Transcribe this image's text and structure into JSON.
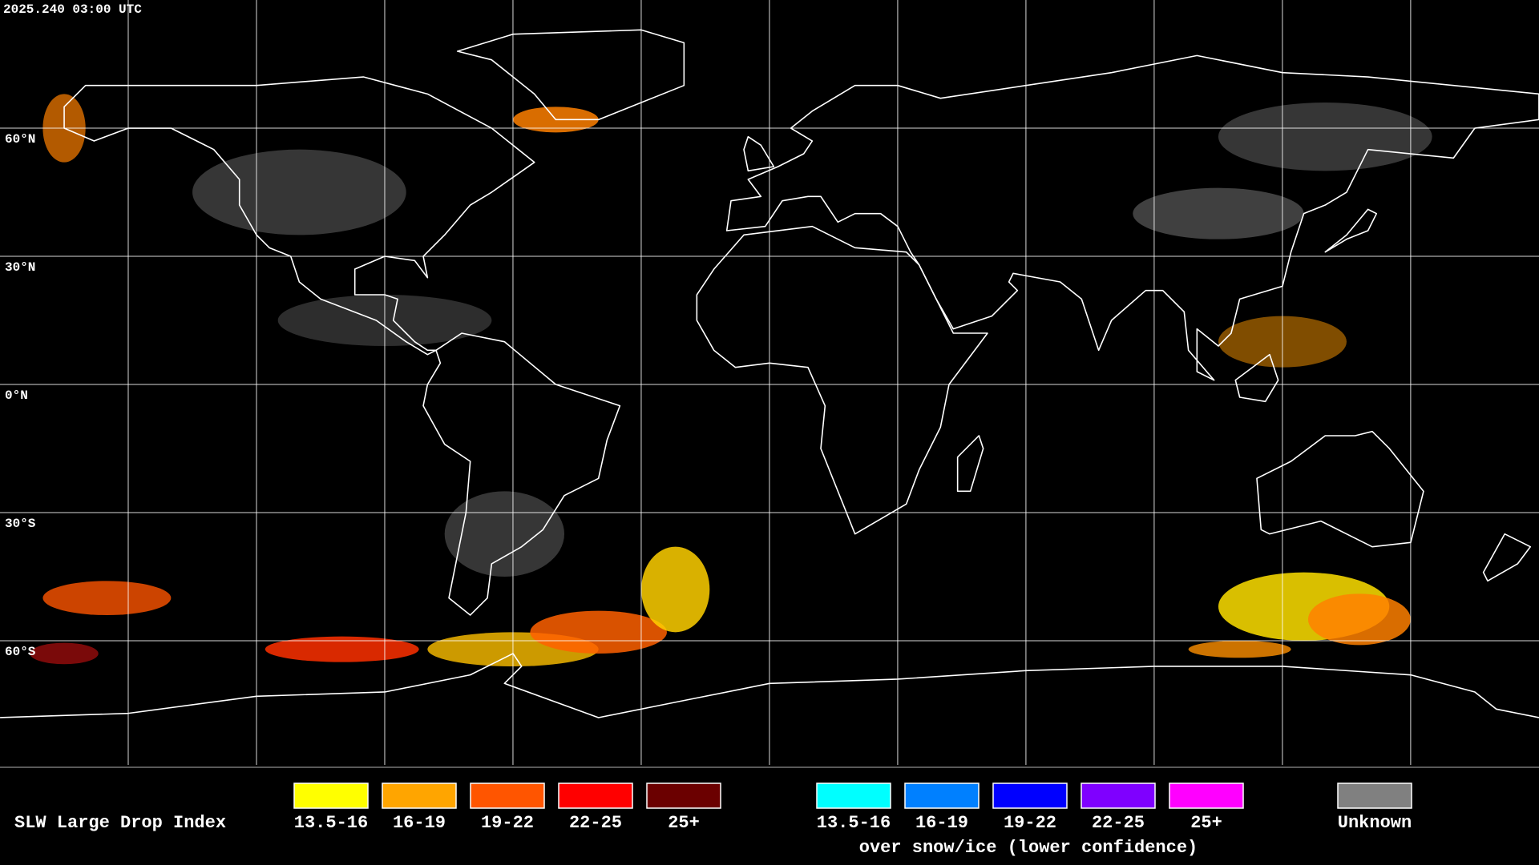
{
  "header": {
    "timestamp": "2025.240 03:00 UTC"
  },
  "map": {
    "lat_labels": [
      "60°N",
      "30°N",
      "0°N",
      "30°S",
      "60°S"
    ]
  },
  "legend": {
    "title": "SLW Large Drop Index",
    "standard": [
      {
        "label": "13.5-16",
        "color": "#ffff00"
      },
      {
        "label": "16-19",
        "color": "#ffa500"
      },
      {
        "label": "19-22",
        "color": "#ff5500"
      },
      {
        "label": "22-25",
        "color": "#ff0000"
      },
      {
        "label": "25+",
        "color": "#6b0000"
      }
    ],
    "snow_ice": [
      {
        "label": "13.5-16",
        "color": "#00ffff"
      },
      {
        "label": "16-19",
        "color": "#0080ff"
      },
      {
        "label": "19-22",
        "color": "#0000ff"
      },
      {
        "label": "22-25",
        "color": "#7f00ff"
      },
      {
        "label": "25+",
        "color": "#ff00ff"
      }
    ],
    "snow_ice_note": "over snow/ice (lower confidence)",
    "unknown": {
      "label": "Unknown",
      "color": "#808080"
    }
  }
}
